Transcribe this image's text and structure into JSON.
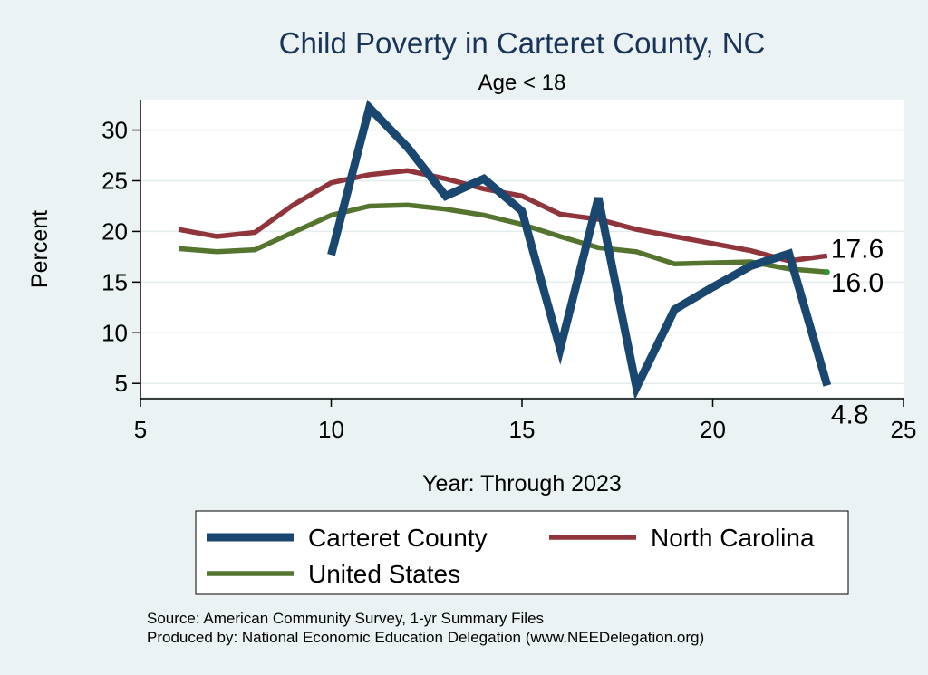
{
  "chart_data": {
    "type": "line",
    "title": "Child Poverty in Carteret County, NC",
    "subtitle": "Age < 18",
    "xlabel": "Year: Through 2023",
    "ylabel": "Percent",
    "xlim": [
      5,
      25
    ],
    "ylim": [
      3.5,
      33
    ],
    "xticks": [
      5,
      10,
      15,
      20,
      25
    ],
    "yticks": [
      5,
      10,
      15,
      20,
      25,
      30
    ],
    "grid": true,
    "legend_position": "bottom",
    "series": [
      {
        "name": "Carteret County",
        "color": "#1a476f",
        "x": [
          10,
          11,
          12,
          13,
          14,
          15,
          16,
          17,
          18,
          19,
          20,
          21,
          22,
          23
        ],
        "values": [
          17.7,
          32.2,
          28.3,
          23.5,
          25.2,
          22.0,
          8.4,
          23.3,
          4.6,
          12.3,
          14.5,
          16.6,
          17.8,
          4.8
        ],
        "end_label": "4.8"
      },
      {
        "name": "North Carolina",
        "color": "#90353b",
        "x": [
          6,
          7,
          8,
          9,
          10,
          11,
          12,
          13,
          14,
          15,
          16,
          17,
          18,
          19,
          20,
          21,
          22,
          23
        ],
        "values": [
          20.2,
          19.5,
          19.9,
          22.6,
          24.8,
          25.6,
          26.0,
          25.2,
          24.2,
          23.5,
          21.7,
          21.2,
          20.2,
          19.5,
          18.8,
          18.1,
          17.1,
          17.6
        ],
        "end_label": "17.6"
      },
      {
        "name": "United States",
        "color": "#55752f",
        "x": [
          6,
          7,
          8,
          9,
          10,
          11,
          12,
          13,
          14,
          15,
          16,
          17,
          18,
          19,
          20,
          21,
          22,
          23
        ],
        "values": [
          18.3,
          18.0,
          18.2,
          19.9,
          21.6,
          22.5,
          22.6,
          22.2,
          21.6,
          20.7,
          19.5,
          18.4,
          18.0,
          16.8,
          16.9,
          17.0,
          16.3,
          16.0
        ],
        "end_label": "16.0"
      }
    ],
    "notes": [
      "Source: American Community Survey, 1-yr Summary Files",
      "Produced by: National Economic Education Delegation (www.NEEDelegation.org)"
    ]
  }
}
